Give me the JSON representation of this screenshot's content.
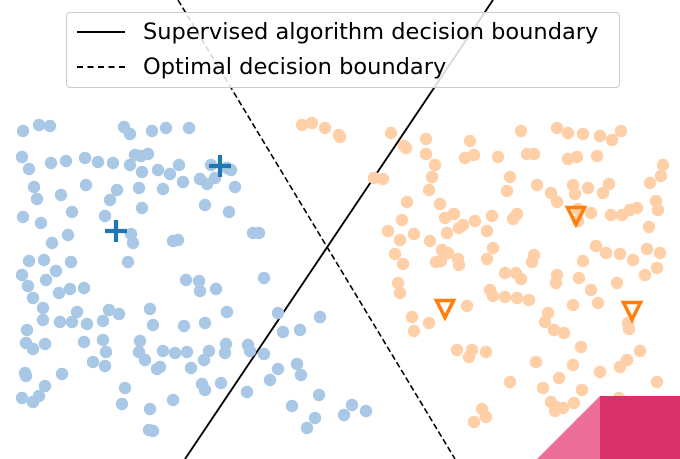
{
  "chart_data": {
    "type": "scatter",
    "title": "",
    "xlabel": "",
    "ylabel": "",
    "grid": false,
    "axes_visible": false,
    "xlim": [
      0,
      680
    ],
    "ylim": [
      -459,
      0
    ],
    "legend": {
      "position": "top-center",
      "entries": [
        {
          "label": "Supervised algorithm decision boundary",
          "style": "solid",
          "color": "#000000"
        },
        {
          "label": "Optimal decision boundary",
          "style": "dashed",
          "color": "#000000"
        }
      ]
    },
    "lines": [
      {
        "name": "Supervised algorithm decision boundary",
        "style": "solid",
        "color": "#000000",
        "points": [
          [
            185,
            -459
          ],
          [
            493,
            0
          ]
        ]
      },
      {
        "name": "Optimal decision boundary",
        "style": "dashed",
        "color": "#000000",
        "points": [
          [
            178,
            0
          ],
          [
            455,
            -459
          ]
        ]
      }
    ],
    "series": [
      {
        "color": "#a8c8e6",
        "marker": "circle",
        "points": [
          [
            23,
            -131
          ],
          [
            39,
            -125
          ],
          [
            50,
            -126
          ],
          [
            22,
            -157
          ],
          [
            29,
            -169
          ],
          [
            34,
            -187
          ],
          [
            37,
            -199
          ],
          [
            23,
            -217
          ],
          [
            52,
            -243
          ],
          [
            68,
            -235
          ],
          [
            72,
            -212
          ],
          [
            61,
            -195
          ],
          [
            51,
            -163
          ],
          [
            66,
            -161
          ],
          [
            44,
            -260
          ],
          [
            29,
            -261
          ],
          [
            22,
            -275
          ],
          [
            28,
            -286
          ],
          [
            46,
            -280
          ],
          [
            56,
            -271
          ],
          [
            71,
            -262
          ],
          [
            59,
            -293
          ],
          [
            70,
            -289
          ],
          [
            84,
            -288
          ],
          [
            33,
            -298
          ],
          [
            43,
            -308
          ],
          [
            43,
            -320
          ],
          [
            27,
            -330
          ],
          [
            45,
            -344
          ],
          [
            60,
            -322
          ],
          [
            72,
            -322
          ],
          [
            77,
            -312
          ],
          [
            87,
            -324
          ],
          [
            103,
            -321
          ],
          [
            109,
            -310
          ],
          [
            84,
            -342
          ],
          [
            103,
            -340
          ],
          [
            106,
            -352
          ],
          [
            93,
            -362
          ],
          [
            26,
            -343
          ],
          [
            33,
            -349
          ],
          [
            25,
            -373
          ],
          [
            26,
            -376
          ],
          [
            45,
            -386
          ],
          [
            62,
            -374
          ],
          [
            39,
            -396
          ],
          [
            33,
            -402
          ],
          [
            22,
            -398
          ],
          [
            105,
            -366
          ],
          [
            125,
            -388
          ],
          [
            122,
            -404
          ],
          [
            150,
            -409
          ],
          [
            153,
            -431
          ],
          [
            149,
            -430
          ],
          [
            173,
            -400
          ],
          [
            160,
            -367
          ],
          [
            157,
            -369
          ],
          [
            145,
            -360
          ],
          [
            139,
            -352
          ],
          [
            163,
            -351
          ],
          [
            140,
            -341
          ],
          [
            119,
            -314
          ],
          [
            150,
            -309
          ],
          [
            153,
            -325
          ],
          [
            184,
            -326
          ],
          [
            175,
            -353
          ],
          [
            187,
            -352
          ],
          [
            191,
            -368
          ],
          [
            202,
            -384
          ],
          [
            221,
            -383
          ],
          [
            225,
            -353
          ],
          [
            226,
            -344
          ],
          [
            209,
            -351
          ],
          [
            204,
            -360
          ],
          [
            205,
            -390
          ],
          [
            247,
            -392
          ],
          [
            270,
            -380
          ],
          [
            278,
            -369
          ],
          [
            297,
            -364
          ],
          [
            301,
            -375
          ],
          [
            319,
            -395
          ],
          [
            344,
            -415
          ],
          [
            352,
            -405
          ],
          [
            366,
            -411
          ],
          [
            315,
            -418
          ],
          [
            307,
            -428
          ],
          [
            292,
            -406
          ],
          [
            250,
            -351
          ],
          [
            264,
            -354
          ],
          [
            283,
            -332
          ],
          [
            300,
            -330
          ],
          [
            320,
            -317
          ],
          [
            278,
            -313
          ],
          [
            248,
            -345
          ],
          [
            186,
            -280
          ],
          [
            199,
            -281
          ],
          [
            200,
            -291
          ],
          [
            216,
            -289
          ],
          [
            227,
            -312
          ],
          [
            205,
            -323
          ],
          [
            264,
            -278
          ],
          [
            253,
            -233
          ],
          [
            178,
            -240
          ],
          [
            173,
            -241
          ],
          [
            131,
            -234
          ],
          [
            133,
            -243
          ],
          [
            128,
            -262
          ],
          [
            105,
            -216
          ],
          [
            110,
            -200
          ],
          [
            142,
            -208
          ],
          [
            163,
            -189
          ],
          [
            170,
            -174
          ],
          [
            183,
            -182
          ],
          [
            179,
            -165
          ],
          [
            200,
            -179
          ],
          [
            207,
            -184
          ],
          [
            215,
            -178
          ],
          [
            205,
            -205
          ],
          [
            229,
            -212
          ],
          [
            235,
            -187
          ],
          [
            231,
            -170
          ],
          [
            259,
            -233
          ],
          [
            227,
            -168
          ],
          [
            142,
            -172
          ],
          [
            130,
            -165
          ],
          [
            135,
            -155
          ],
          [
            141,
            -156
          ],
          [
            148,
            -154
          ],
          [
            124,
            -127
          ],
          [
            130,
            -134
          ],
          [
            152,
            -131
          ],
          [
            166,
            -128
          ],
          [
            189,
            -128
          ],
          [
            158,
            -170
          ],
          [
            98,
            -162
          ],
          [
            85,
            -158
          ],
          [
            113,
            -163
          ],
          [
            86,
            -185
          ],
          [
            117,
            -190
          ],
          [
            139,
            -188
          ],
          [
            211,
            -165
          ],
          [
            41,
            -223
          ]
        ]
      },
      {
        "color": "#ffcfa8",
        "marker": "circle",
        "points": [
          [
            302,
            -125
          ],
          [
            312,
            -123
          ],
          [
            325,
            -128
          ],
          [
            339,
            -135
          ],
          [
            340,
            -137
          ],
          [
            391,
            -133
          ],
          [
            404,
            -146
          ],
          [
            406,
            -148
          ],
          [
            426,
            -139
          ],
          [
            426,
            -154
          ],
          [
            374,
            -178
          ],
          [
            383,
            -179
          ],
          [
            407,
            -202
          ],
          [
            429,
            -190
          ],
          [
            432,
            -177
          ],
          [
            435,
            -165
          ],
          [
            465,
            -158
          ],
          [
            470,
            -141
          ],
          [
            474,
            -155
          ],
          [
            498,
            -157
          ],
          [
            521,
            -131
          ],
          [
            527,
            -154
          ],
          [
            534,
            -154
          ],
          [
            557,
            -128
          ],
          [
            568,
            -133
          ],
          [
            583,
            -134
          ],
          [
            600,
            -136
          ],
          [
            621,
            -131
          ],
          [
            612,
            -140
          ],
          [
            597,
            -156
          ],
          [
            577,
            -157
          ],
          [
            568,
            -159
          ],
          [
            663,
            -165
          ],
          [
            661,
            -176
          ],
          [
            650,
            -183
          ],
          [
            609,
            -184
          ],
          [
            603,
            -193
          ],
          [
            573,
            -185
          ],
          [
            575,
            -194
          ],
          [
            557,
            -202
          ],
          [
            551,
            -193
          ],
          [
            537,
            -185
          ],
          [
            510,
            -177
          ],
          [
            507,
            -191
          ],
          [
            513,
            -219
          ],
          [
            492,
            -216
          ],
          [
            487,
            -231
          ],
          [
            475,
            -221
          ],
          [
            463,
            -225
          ],
          [
            447,
            -233
          ],
          [
            440,
            -204
          ],
          [
            445,
            -218
          ],
          [
            454,
            -214
          ],
          [
            459,
            -228
          ],
          [
            448,
            -253
          ],
          [
            441,
            -261
          ],
          [
            442,
            -250
          ],
          [
            458,
            -259
          ],
          [
            459,
            -265
          ],
          [
            436,
            -262
          ],
          [
            430,
            -241
          ],
          [
            414,
            -234
          ],
          [
            402,
            -220
          ],
          [
            388,
            -231
          ],
          [
            400,
            -240
          ],
          [
            395,
            -254
          ],
          [
            403,
            -264
          ],
          [
            398,
            -283
          ],
          [
            400,
            -293
          ],
          [
            412,
            -317
          ],
          [
            429,
            -323
          ],
          [
            414,
            -331
          ],
          [
            457,
            -350
          ],
          [
            472,
            -350
          ],
          [
            486,
            -352
          ],
          [
            469,
            -357
          ],
          [
            467,
            -306
          ],
          [
            490,
            -290
          ],
          [
            493,
            -296
          ],
          [
            487,
            -259
          ],
          [
            493,
            -248
          ],
          [
            505,
            -273
          ],
          [
            516,
            -273
          ],
          [
            521,
            -279
          ],
          [
            529,
            -300
          ],
          [
            517,
            -298
          ],
          [
            505,
            -297
          ],
          [
            532,
            -262
          ],
          [
            534,
            -255
          ],
          [
            557,
            -275
          ],
          [
            556,
            -283
          ],
          [
            548,
            -313
          ],
          [
            545,
            -322
          ],
          [
            554,
            -330
          ],
          [
            564,
            -333
          ],
          [
            573,
            -305
          ],
          [
            591,
            -290
          ],
          [
            579,
            -278
          ],
          [
            583,
            -261
          ],
          [
            596,
            -246
          ],
          [
            606,
            -253
          ],
          [
            620,
            -254
          ],
          [
            633,
            -260
          ],
          [
            647,
            -249
          ],
          [
            660,
            -253
          ],
          [
            645,
            -275
          ],
          [
            657,
            -268
          ],
          [
            617,
            -283
          ],
          [
            598,
            -303
          ],
          [
            628,
            -323
          ],
          [
            629,
            -329
          ],
          [
            640,
            -351
          ],
          [
            627,
            -360
          ],
          [
            620,
            -367
          ],
          [
            600,
            -372
          ],
          [
            581,
            -347
          ],
          [
            573,
            -365
          ],
          [
            559,
            -378
          ],
          [
            543,
            -388
          ],
          [
            536,
            -362
          ],
          [
            510,
            -382
          ],
          [
            551,
            -402
          ],
          [
            556,
            -407
          ],
          [
            555,
            -411
          ],
          [
            574,
            -403
          ],
          [
            563,
            -408
          ],
          [
            581,
            -423
          ],
          [
            582,
            -390
          ],
          [
            619,
            -398
          ],
          [
            625,
            -409
          ],
          [
            635,
            -404
          ],
          [
            657,
            -382
          ],
          [
            649,
            -227
          ],
          [
            656,
            -201
          ],
          [
            658,
            -210
          ],
          [
            637,
            -208
          ],
          [
            630,
            -210
          ],
          [
            622,
            -215
          ],
          [
            611,
            -215
          ],
          [
            591,
            -213
          ],
          [
            578,
            -209
          ],
          [
            578,
            -221
          ],
          [
            482,
            -409
          ],
          [
            486,
            -417
          ],
          [
            474,
            -422
          ],
          [
            517,
            -214
          ],
          [
            588,
            -188
          ]
        ]
      },
      {
        "color": "#1f77b4",
        "marker": "plus",
        "points": [
          [
            220,
            -166
          ],
          [
            116,
            -231
          ]
        ]
      },
      {
        "color": "#ff7f0e",
        "marker": "triangle-down-open",
        "points": [
          [
            576,
            -216
          ],
          [
            445,
            -309
          ],
          [
            632,
            -311
          ]
        ]
      }
    ]
  }
}
